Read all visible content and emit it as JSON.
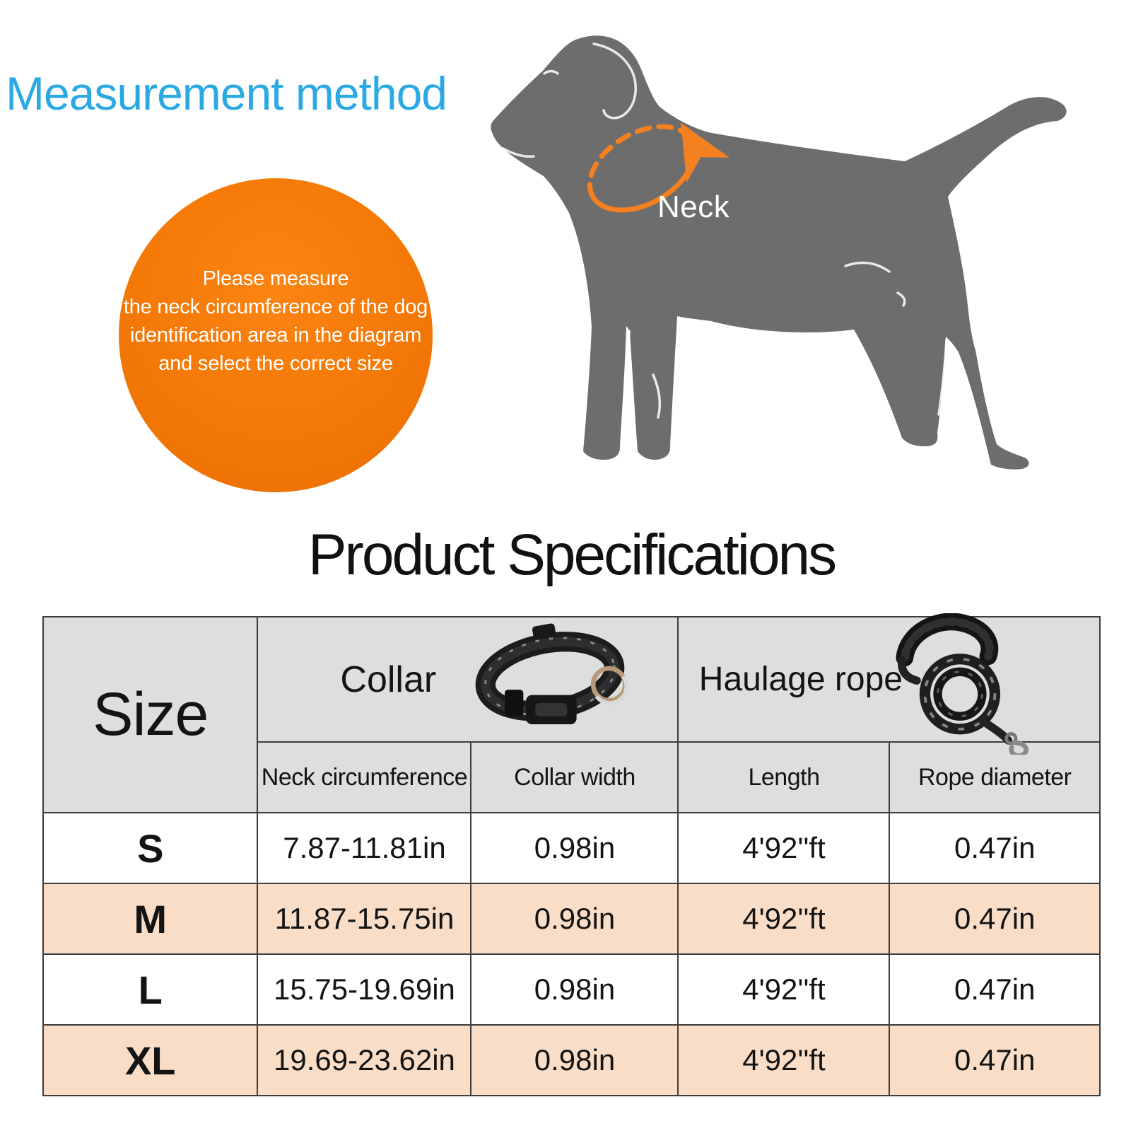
{
  "measurement": {
    "title": "Measurement method",
    "neck_label": "Neck",
    "note_lines": [
      "Please measure",
      "the neck circumference of the dog",
      "identification area in the diagram",
      "and select the correct size"
    ]
  },
  "specs": {
    "title": "Product Specifications",
    "table": {
      "size_header": "Size",
      "groups": [
        {
          "label": "Collar",
          "icon": "collar-icon"
        },
        {
          "label": "Haulage rope",
          "icon": "leash-icon"
        }
      ],
      "sub_columns": [
        "Neck circumference",
        "Collar width",
        "Length",
        "Rope diameter"
      ],
      "rows": [
        {
          "size": "S",
          "neck_circumference": "7.87-11.81in",
          "collar_width": "0.98in",
          "length": "4'92''ft",
          "rope_diameter": "0.47in",
          "highlight": false
        },
        {
          "size": "M",
          "neck_circumference": "11.87-15.75in",
          "collar_width": "0.98in",
          "length": "4'92''ft",
          "rope_diameter": "0.47in",
          "highlight": true
        },
        {
          "size": "L",
          "neck_circumference": "15.75-19.69in",
          "collar_width": "0.98in",
          "length": "4'92''ft",
          "rope_diameter": "0.47in",
          "highlight": false
        },
        {
          "size": "XL",
          "neck_circumference": "19.69-23.62in",
          "collar_width": "0.98in",
          "length": "4'92''ft",
          "rope_diameter": "0.47in",
          "highlight": true
        }
      ]
    }
  },
  "colors": {
    "accent_blue": "#2BA9E2",
    "accent_orange": "#F47806",
    "measure_arrow_orange": "#F58020",
    "dog_gray": "#6E6D6D",
    "table_header_gray": "#DEDEDE",
    "row_highlight_peach": "#F9DDC7",
    "table_border": "#3D3D3D",
    "text_black": "#141414"
  }
}
